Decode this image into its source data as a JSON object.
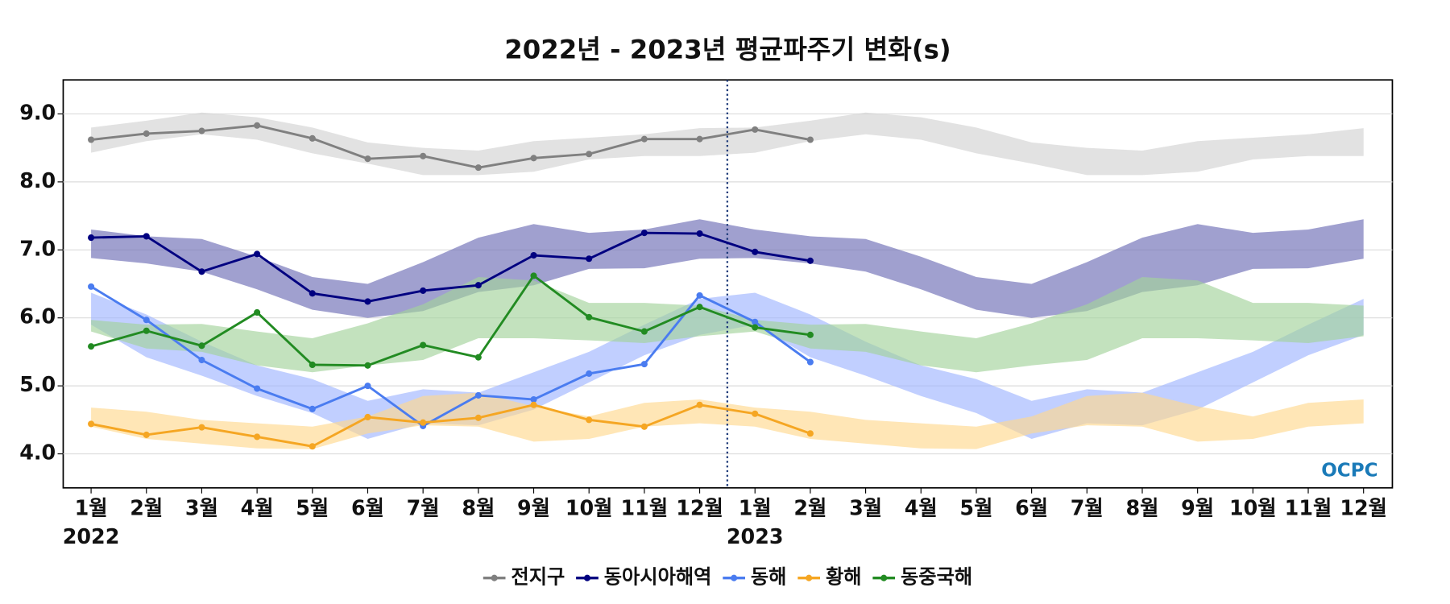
{
  "chart_data": {
    "type": "line",
    "title": "2022년 - 2023년 평균파주기 변화(s)",
    "categories": [
      "1월",
      "2월",
      "3월",
      "4월",
      "5월",
      "6월",
      "7월",
      "8월",
      "9월",
      "10월",
      "11월",
      "12월",
      "1월",
      "2월",
      "3월",
      "4월",
      "5월",
      "6월",
      "7월",
      "8월",
      "9월",
      "10월",
      "11월",
      "12월"
    ],
    "year_labels": [
      "2022",
      null,
      null,
      null,
      null,
      null,
      null,
      null,
      null,
      null,
      null,
      null,
      "2023",
      null,
      null,
      null,
      null,
      null,
      null,
      null,
      null,
      null,
      null,
      null
    ],
    "ylim": [
      3.5,
      9.5
    ],
    "yticks": [
      {
        "value": 4,
        "label": "4.0"
      },
      {
        "value": 5,
        "label": "5.0"
      },
      {
        "value": 6,
        "label": "6.0"
      },
      {
        "value": 7,
        "label": "7.0"
      },
      {
        "value": 8,
        "label": "8.0"
      },
      {
        "value": 9,
        "label": "9.0"
      }
    ],
    "grid": true,
    "legend": "bottom",
    "logo": "OCPC",
    "series": [
      {
        "name": "전지구",
        "color": "#808080",
        "band_color": "#d3d3d3",
        "values": [
          8.62,
          8.71,
          8.75,
          8.83,
          8.64,
          8.34,
          8.38,
          8.21,
          8.35,
          8.41,
          8.63,
          8.63,
          8.77,
          8.62,
          null,
          null,
          null,
          null,
          null,
          null,
          null,
          null,
          null,
          null
        ],
        "band_high": [
          8.8,
          8.9,
          9.02,
          8.95,
          8.8,
          8.58,
          8.5,
          8.46,
          8.6,
          8.65,
          8.7,
          8.79,
          8.8,
          8.9,
          9.02,
          8.95,
          8.8,
          8.58,
          8.5,
          8.46,
          8.6,
          8.65,
          8.7,
          8.79
        ],
        "band_low": [
          8.43,
          8.6,
          8.7,
          8.62,
          8.42,
          8.27,
          8.1,
          8.1,
          8.15,
          8.33,
          8.38,
          8.38,
          8.43,
          8.6,
          8.7,
          8.62,
          8.42,
          8.27,
          8.1,
          8.1,
          8.15,
          8.33,
          8.38,
          8.38
        ]
      },
      {
        "name": "동아시아해역",
        "color": "#000080",
        "band_color": "#6d6db5",
        "values": [
          7.18,
          7.2,
          6.68,
          6.94,
          6.36,
          6.24,
          6.4,
          6.48,
          6.92,
          6.87,
          7.25,
          7.24,
          6.97,
          6.84,
          null,
          null,
          null,
          null,
          null,
          null,
          null,
          null,
          null,
          null
        ],
        "band_high": [
          7.3,
          7.2,
          7.16,
          6.9,
          6.6,
          6.5,
          6.82,
          7.18,
          7.38,
          7.25,
          7.3,
          7.45,
          7.3,
          7.2,
          7.16,
          6.9,
          6.6,
          6.5,
          6.82,
          7.18,
          7.38,
          7.25,
          7.3,
          7.45
        ],
        "band_low": [
          6.88,
          6.8,
          6.68,
          6.42,
          6.12,
          6.0,
          6.1,
          6.38,
          6.48,
          6.72,
          6.73,
          6.87,
          6.88,
          6.8,
          6.68,
          6.42,
          6.12,
          6.0,
          6.1,
          6.38,
          6.48,
          6.72,
          6.73,
          6.87
        ]
      },
      {
        "name": "동해",
        "color": "#4a7cf0",
        "band_color": "#9fb5ff",
        "values": [
          6.46,
          5.97,
          5.38,
          4.96,
          4.66,
          5.0,
          4.41,
          4.86,
          4.8,
          5.18,
          5.32,
          6.33,
          5.94,
          5.35,
          null,
          null,
          null,
          null,
          null,
          null,
          null,
          null,
          null,
          null
        ],
        "band_high": [
          6.37,
          6.05,
          5.65,
          5.3,
          5.1,
          4.78,
          4.95,
          4.9,
          5.2,
          5.5,
          5.9,
          6.28,
          6.37,
          6.05,
          5.65,
          5.3,
          5.1,
          4.78,
          4.95,
          4.9,
          5.2,
          5.5,
          5.9,
          6.28
        ],
        "band_low": [
          5.9,
          5.42,
          5.15,
          4.85,
          4.6,
          4.22,
          4.45,
          4.42,
          4.65,
          5.05,
          5.45,
          5.75,
          5.9,
          5.42,
          5.15,
          4.85,
          4.6,
          4.22,
          4.45,
          4.42,
          4.65,
          5.05,
          5.45,
          5.75
        ]
      },
      {
        "name": "황해",
        "color": "#f5a623",
        "band_color": "#ffd98f",
        "values": [
          4.44,
          4.28,
          4.39,
          4.25,
          4.11,
          4.54,
          4.46,
          4.53,
          4.72,
          4.5,
          4.4,
          4.72,
          4.59,
          4.3,
          null,
          null,
          null,
          null,
          null,
          null,
          null,
          null,
          null,
          null
        ],
        "band_high": [
          4.68,
          4.62,
          4.5,
          4.45,
          4.4,
          4.55,
          4.85,
          4.9,
          4.7,
          4.55,
          4.75,
          4.8,
          4.68,
          4.62,
          4.5,
          4.45,
          4.4,
          4.55,
          4.85,
          4.9,
          4.7,
          4.55,
          4.75,
          4.8
        ],
        "band_low": [
          4.4,
          4.22,
          4.15,
          4.08,
          4.07,
          4.3,
          4.42,
          4.4,
          4.18,
          4.22,
          4.4,
          4.45,
          4.4,
          4.22,
          4.15,
          4.08,
          4.07,
          4.3,
          4.42,
          4.4,
          4.18,
          4.22,
          4.4,
          4.45
        ]
      },
      {
        "name": "동중국해",
        "color": "#228b22",
        "band_color": "#a3d39b",
        "values": [
          5.58,
          5.81,
          5.59,
          6.08,
          5.31,
          5.3,
          5.6,
          5.42,
          6.62,
          6.01,
          5.8,
          6.16,
          5.86,
          5.75,
          null,
          null,
          null,
          null,
          null,
          null,
          null,
          null,
          null,
          null
        ],
        "band_high": [
          5.97,
          5.9,
          5.91,
          5.8,
          5.7,
          5.92,
          6.2,
          6.6,
          6.55,
          6.22,
          6.22,
          6.18,
          5.97,
          5.9,
          5.91,
          5.8,
          5.7,
          5.92,
          6.2,
          6.6,
          6.55,
          6.22,
          6.22,
          6.18
        ],
        "band_low": [
          5.8,
          5.55,
          5.5,
          5.3,
          5.2,
          5.3,
          5.38,
          5.7,
          5.7,
          5.67,
          5.63,
          5.73,
          5.8,
          5.55,
          5.5,
          5.3,
          5.2,
          5.3,
          5.38,
          5.7,
          5.7,
          5.67,
          5.63,
          5.73
        ]
      }
    ]
  }
}
